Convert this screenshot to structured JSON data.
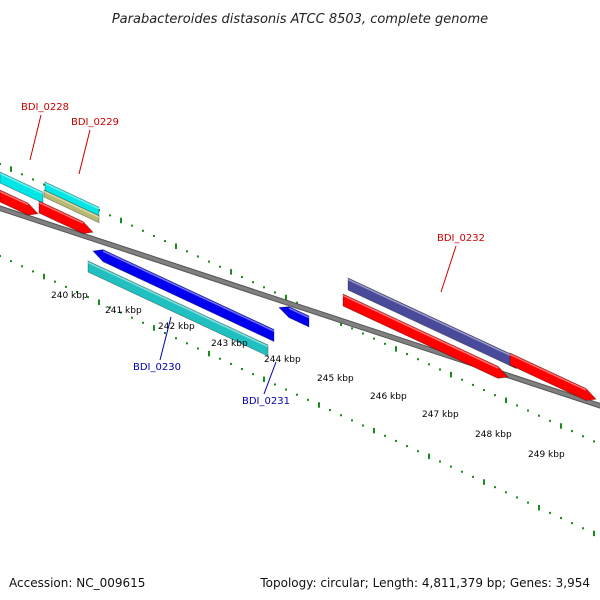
{
  "title": "Parabacteroides distasonis ATCC 8503, complete genome",
  "footer": {
    "accession": "Accession: NC_009615",
    "summary": "Topology: circular; Length: 4,811,379 bp; Genes: 3,954"
  },
  "ticks": [
    {
      "label": "240 kbp"
    },
    {
      "label": "241 kbp"
    },
    {
      "label": "242 kbp"
    },
    {
      "label": "243 kbp"
    },
    {
      "label": "244 kbp"
    },
    {
      "label": "245 kbp"
    },
    {
      "label": "246 kbp"
    },
    {
      "label": "247 kbp"
    },
    {
      "label": "248 kbp"
    },
    {
      "label": "249 kbp"
    }
  ],
  "genes": [
    {
      "id": "BDI_0228",
      "label": "BDI_0228",
      "strand": "+",
      "color": "#ff0000",
      "labelColor": "#cc0000"
    },
    {
      "id": "BDI_0229",
      "label": "BDI_0229",
      "strand": "+",
      "color": "#ff0000",
      "labelColor": "#cc0000"
    },
    {
      "id": "BDI_0230",
      "label": "BDI_0230",
      "strand": "-",
      "color": "#0000ee",
      "labelColor": "#0000aa"
    },
    {
      "id": "BDI_0231",
      "label": "BDI_0231",
      "strand": "-",
      "color": "#0000ee",
      "labelColor": "#0000aa"
    },
    {
      "id": "BDI_0232",
      "label": "BDI_0232",
      "strand": "+",
      "color": "#ff0000",
      "labelColor": "#cc0000"
    }
  ],
  "colors": {
    "backbone": "#808080",
    "tick": "#1a8a1a",
    "cds_plus": "#ff0000",
    "cds_minus": "#0000ee",
    "cog_cyan": "#00e5e5",
    "cog_teal": "#20c0c0",
    "cog_olive": "#b8b870",
    "cog_purple": "#4a4a9a"
  }
}
